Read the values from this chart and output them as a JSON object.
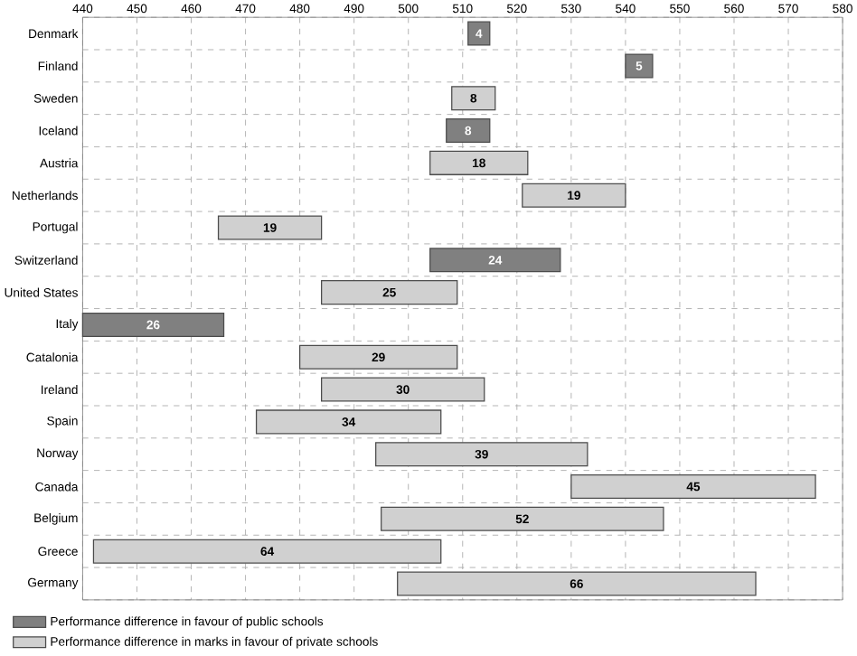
{
  "chart_data": {
    "type": "bar",
    "orientation": "horizontal",
    "categories": [
      "Denmark",
      "Finland",
      "Sweden",
      "Iceland",
      "Austria",
      "Netherlands",
      "Portugal",
      "Switzerland",
      "United States",
      "Italy",
      "Catalonia",
      "Ireland",
      "Spain",
      "Norway",
      "Canada",
      "Belgium",
      "Greece",
      "Germany"
    ],
    "series": [
      {
        "name": "Performance difference in favour of public schools",
        "color": "#808080",
        "values": [
          4,
          5,
          null,
          8,
          null,
          null,
          null,
          24,
          null,
          26,
          null,
          null,
          null,
          null,
          null,
          null,
          null,
          null
        ],
        "base": [
          511,
          540,
          null,
          507,
          null,
          null,
          null,
          504,
          null,
          440,
          null,
          null,
          null,
          null,
          null,
          null,
          null,
          null
        ]
      },
      {
        "name": "Performance difference in marks in favour of private schools",
        "color": "#d0d0d0",
        "values": [
          null,
          null,
          8,
          null,
          18,
          19,
          19,
          null,
          25,
          null,
          29,
          30,
          34,
          39,
          45,
          52,
          64,
          66
        ],
        "base": [
          null,
          null,
          508,
          null,
          504,
          521,
          465,
          null,
          484,
          null,
          480,
          484,
          472,
          494,
          530,
          495,
          442,
          498
        ]
      }
    ],
    "xlim": [
      440,
      580
    ],
    "xticks": [
      440,
      450,
      460,
      470,
      480,
      490,
      500,
      510,
      520,
      530,
      540,
      550,
      560,
      570,
      580
    ],
    "data_labels": true,
    "grid": true,
    "legend": "bottom"
  }
}
